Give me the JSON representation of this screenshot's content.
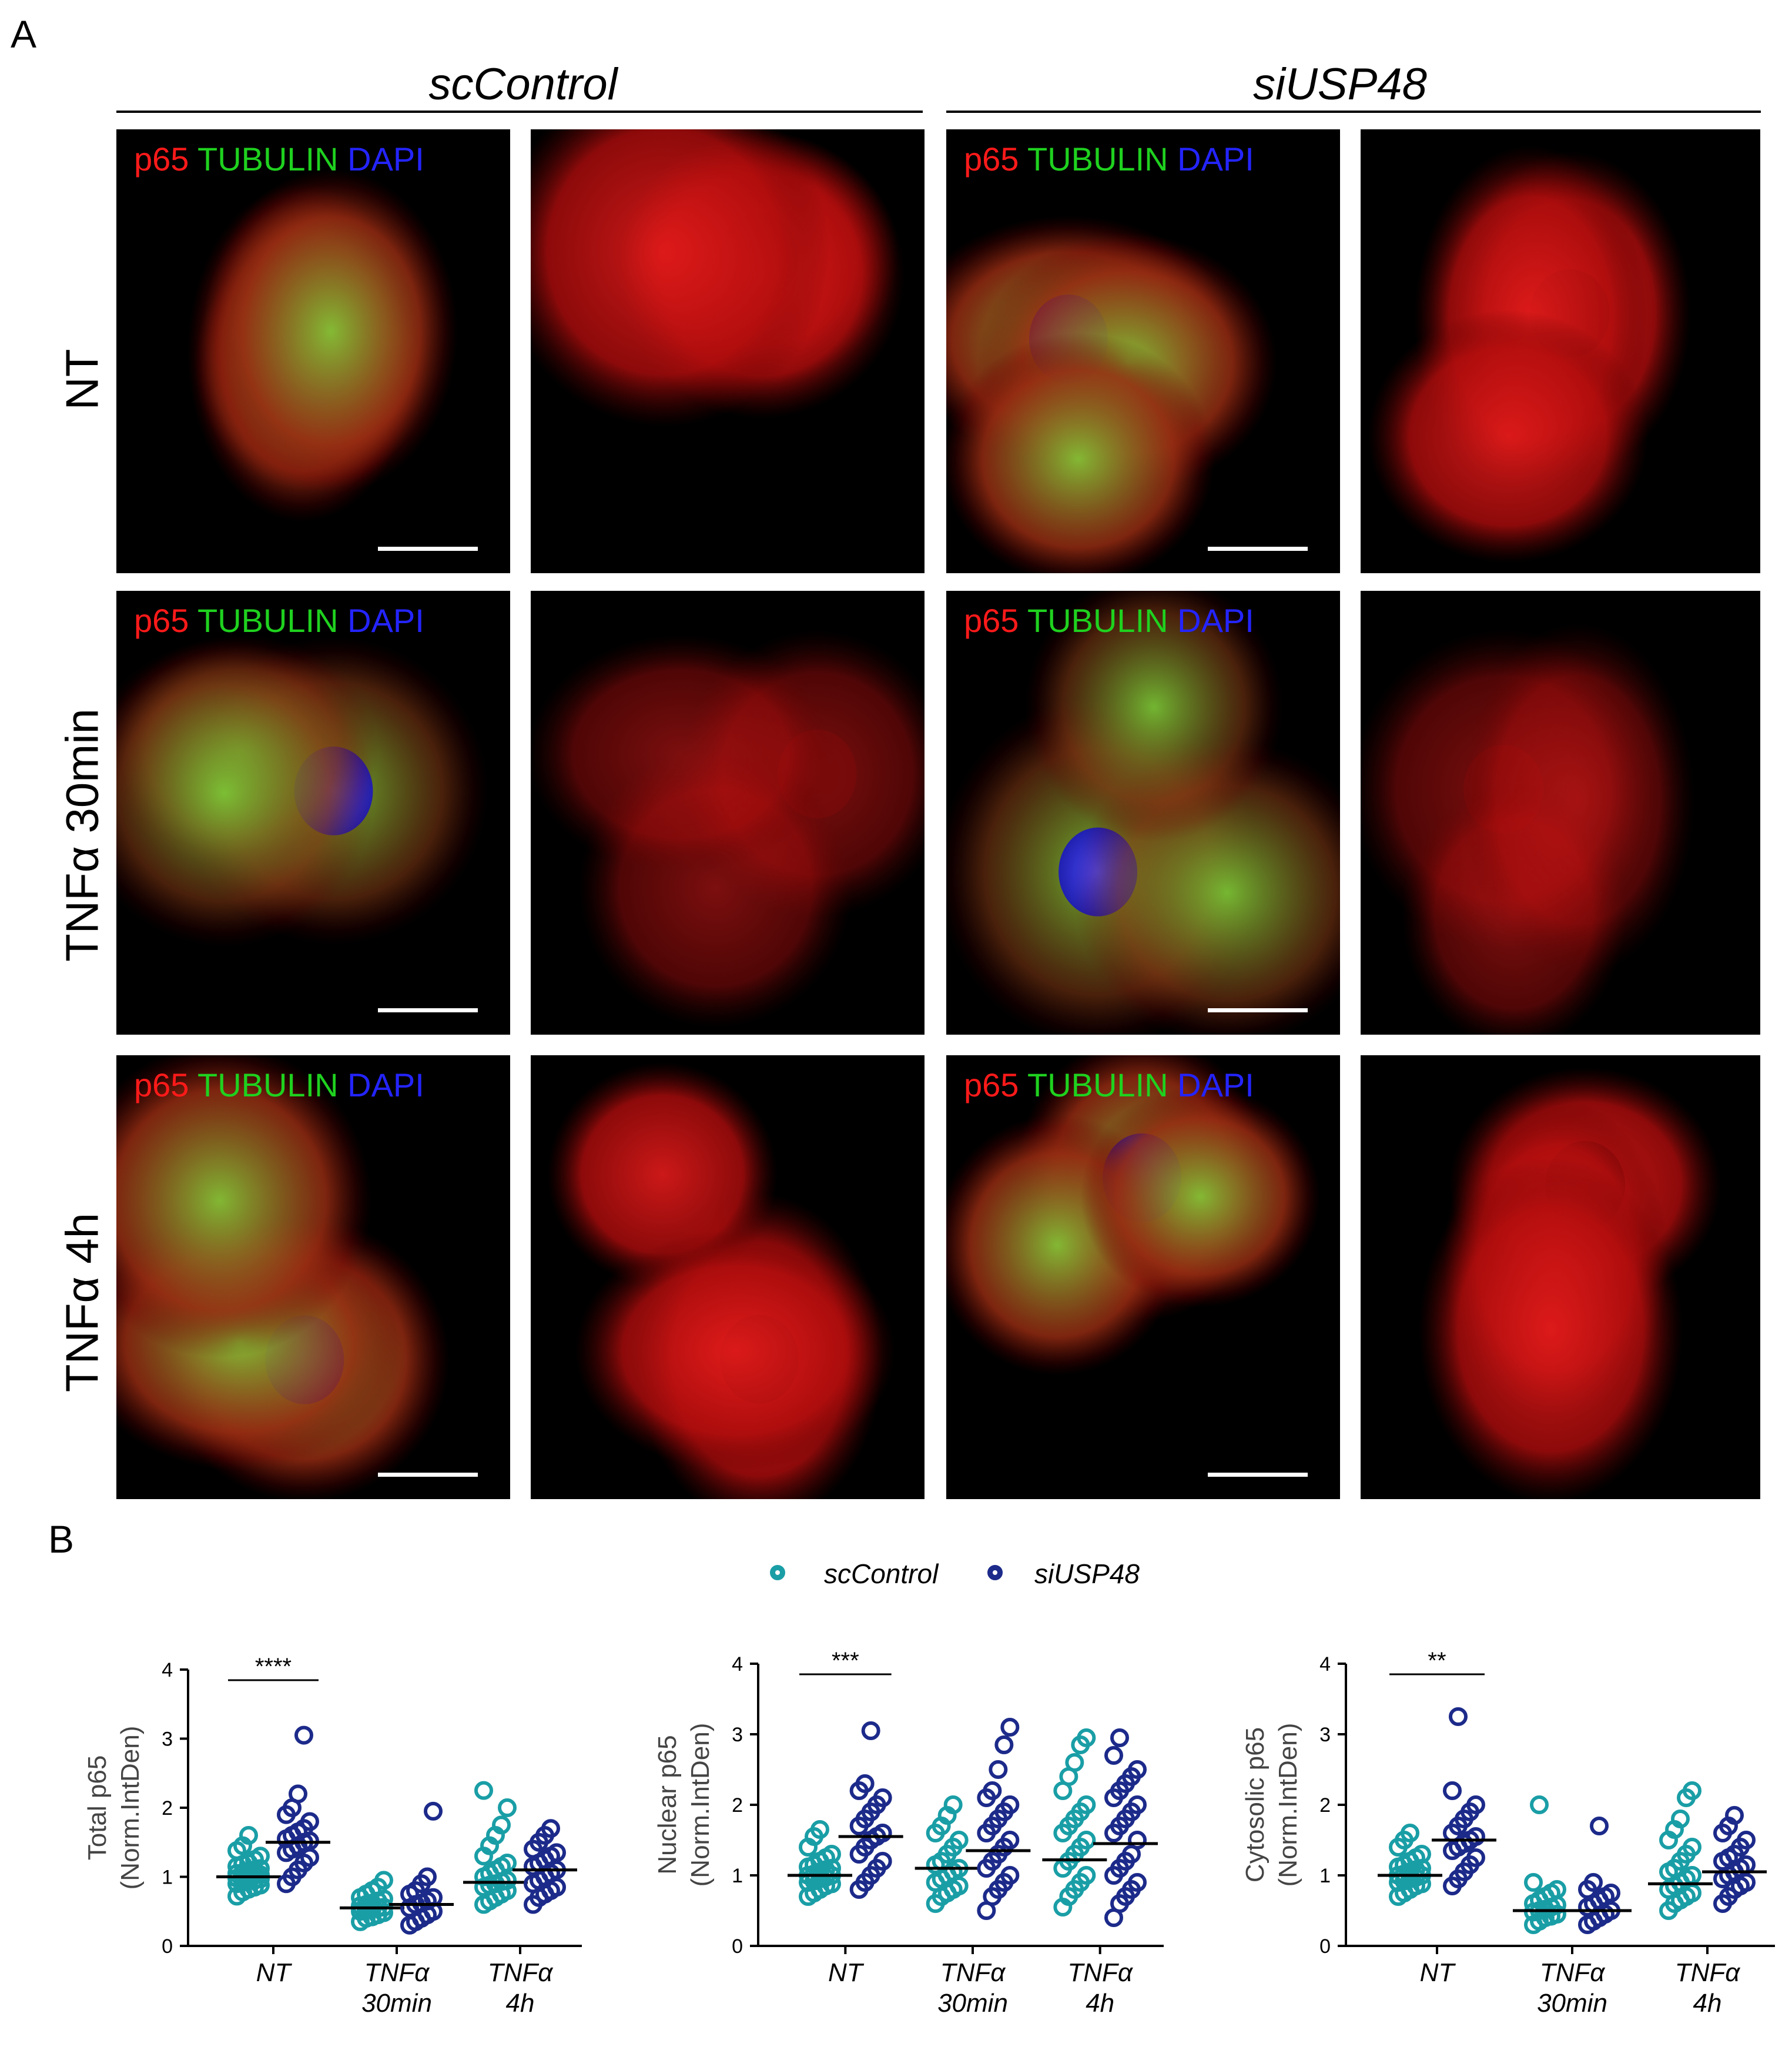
{
  "figure": {
    "panel_a_letter": "A",
    "panel_b_letter": "B",
    "groups": [
      "scControl",
      "siUSP48"
    ],
    "rows": [
      "NT",
      "TNFα 30min",
      "TNFα 4h"
    ],
    "channel_label": {
      "p65": "p65",
      "tubulin": "TUBULIN",
      "dapi": "DAPI"
    },
    "colors": {
      "p65": "#ff1a1a",
      "tubulin": "#1fd11f",
      "dapi": "#2424ff",
      "scControl": "#1a9ea6",
      "siUSP48": "#1c2a8a"
    }
  },
  "legend": {
    "scControl": "scControl",
    "siUSP48": "siUSP48"
  },
  "chart_data": [
    {
      "type": "scatter",
      "ylabel": "Total p65\n(Norm.IntDen)",
      "ylim": [
        0,
        4
      ],
      "yticks": [
        "0",
        "1",
        "2",
        "3",
        "4"
      ],
      "categories": [
        "NT",
        "TNFα\n30min",
        "TNFα\n4h"
      ],
      "significance": {
        "category": "NT",
        "label": "****"
      },
      "series": [
        {
          "name": "scControl",
          "values": [
            [
              0.72,
              0.78,
              0.82,
              0.85,
              0.88,
              0.9,
              0.92,
              0.94,
              0.95,
              0.97,
              0.98,
              1.0,
              1.0,
              1.02,
              1.03,
              1.05,
              1.06,
              1.08,
              1.1,
              1.12,
              1.15,
              1.18,
              1.2,
              1.25,
              1.3,
              1.38,
              1.45,
              1.6
            ],
            [
              0.35,
              0.4,
              0.42,
              0.45,
              0.48,
              0.5,
              0.52,
              0.53,
              0.55,
              0.56,
              0.58,
              0.6,
              0.62,
              0.65,
              0.68,
              0.7,
              0.75,
              0.8,
              0.85,
              0.95
            ],
            [
              0.6,
              0.65,
              0.7,
              0.75,
              0.8,
              0.85,
              0.88,
              0.9,
              0.93,
              0.95,
              1.0,
              1.05,
              1.1,
              1.15,
              1.2,
              1.3,
              1.45,
              1.6,
              1.75,
              2.0,
              2.25
            ]
          ],
          "medians": [
            1.0,
            0.55,
            0.92
          ]
        },
        {
          "name": "siUSP48",
          "values": [
            [
              0.9,
              1.0,
              1.1,
              1.2,
              1.28,
              1.35,
              1.4,
              1.45,
              1.5,
              1.52,
              1.55,
              1.6,
              1.65,
              1.7,
              1.8,
              1.9,
              2.0,
              2.2,
              3.05
            ],
            [
              0.3,
              0.35,
              0.4,
              0.45,
              0.5,
              0.55,
              0.6,
              0.62,
              0.65,
              0.7,
              0.75,
              0.8,
              0.9,
              1.0,
              1.95
            ],
            [
              0.6,
              0.7,
              0.75,
              0.8,
              0.85,
              0.9,
              0.95,
              1.0,
              1.05,
              1.1,
              1.15,
              1.2,
              1.25,
              1.3,
              1.35,
              1.4,
              1.5,
              1.6,
              1.7
            ]
          ],
          "medians": [
            1.5,
            0.6,
            1.1
          ]
        }
      ]
    },
    {
      "type": "scatter",
      "ylabel": "Nuclear p65\n(Norm.IntDen)",
      "ylim": [
        0,
        4
      ],
      "yticks": [
        "0",
        "1",
        "2",
        "3",
        "4"
      ],
      "categories": [
        "NT",
        "TNFα\n30min",
        "TNFα\n4h"
      ],
      "significance": {
        "category": "NT",
        "label": "***"
      },
      "series": [
        {
          "name": "scControl",
          "values": [
            [
              0.7,
              0.75,
              0.8,
              0.85,
              0.88,
              0.9,
              0.92,
              0.95,
              0.97,
              1.0,
              1.0,
              1.02,
              1.05,
              1.08,
              1.1,
              1.12,
              1.15,
              1.2,
              1.25,
              1.3,
              1.4,
              1.55,
              1.65
            ],
            [
              0.6,
              0.7,
              0.75,
              0.8,
              0.85,
              0.9,
              0.95,
              1.0,
              1.05,
              1.1,
              1.15,
              1.2,
              1.3,
              1.4,
              1.5,
              1.6,
              1.7,
              1.85,
              2.0
            ],
            [
              0.55,
              0.7,
              0.8,
              0.9,
              1.0,
              1.1,
              1.2,
              1.3,
              1.4,
              1.5,
              1.6,
              1.7,
              1.8,
              1.9,
              2.0,
              2.2,
              2.4,
              2.6,
              2.85,
              2.95
            ]
          ],
          "medians": [
            1.0,
            1.1,
            1.22
          ]
        },
        {
          "name": "siUSP48",
          "values": [
            [
              0.8,
              0.9,
              1.0,
              1.1,
              1.2,
              1.3,
              1.4,
              1.5,
              1.55,
              1.6,
              1.7,
              1.8,
              1.9,
              2.0,
              2.1,
              2.2,
              2.3,
              3.05
            ],
            [
              0.5,
              0.7,
              0.8,
              0.9,
              1.0,
              1.1,
              1.2,
              1.3,
              1.4,
              1.5,
              1.6,
              1.7,
              1.8,
              1.9,
              2.0,
              2.1,
              2.2,
              2.5,
              2.85,
              3.1
            ],
            [
              0.4,
              0.6,
              0.7,
              0.8,
              0.9,
              1.0,
              1.1,
              1.2,
              1.3,
              1.5,
              1.6,
              1.7,
              1.8,
              1.9,
              2.0,
              2.1,
              2.2,
              2.3,
              2.4,
              2.5,
              2.7,
              2.95
            ]
          ],
          "medians": [
            1.55,
            1.35,
            1.45
          ]
        }
      ]
    },
    {
      "type": "scatter",
      "ylabel": "Cytosolic p65\n(Norm.IntDen)",
      "ylim": [
        0,
        4
      ],
      "yticks": [
        "0",
        "1",
        "2",
        "3",
        "4"
      ],
      "categories": [
        "NT",
        "TNFα\n30min",
        "TNFα\n4h"
      ],
      "significance": {
        "category": "NT",
        "label": "**"
      },
      "series": [
        {
          "name": "scControl",
          "values": [
            [
              0.7,
              0.75,
              0.8,
              0.85,
              0.88,
              0.9,
              0.92,
              0.95,
              0.97,
              1.0,
              1.0,
              1.02,
              1.05,
              1.08,
              1.1,
              1.12,
              1.15,
              1.2,
              1.25,
              1.3,
              1.4,
              1.5,
              1.6
            ],
            [
              0.3,
              0.35,
              0.4,
              0.42,
              0.45,
              0.48,
              0.5,
              0.52,
              0.55,
              0.58,
              0.6,
              0.65,
              0.7,
              0.75,
              0.8,
              0.9,
              2.0
            ],
            [
              0.5,
              0.6,
              0.65,
              0.7,
              0.75,
              0.8,
              0.85,
              0.9,
              0.95,
              1.0,
              1.05,
              1.1,
              1.2,
              1.3,
              1.4,
              1.5,
              1.65,
              1.8,
              2.1,
              2.2
            ]
          ],
          "medians": [
            1.0,
            0.5,
            0.88
          ]
        },
        {
          "name": "siUSP48",
          "values": [
            [
              0.85,
              0.95,
              1.05,
              1.15,
              1.25,
              1.35,
              1.4,
              1.45,
              1.5,
              1.55,
              1.6,
              1.7,
              1.8,
              1.9,
              2.0,
              2.2,
              3.25
            ],
            [
              0.3,
              0.35,
              0.4,
              0.45,
              0.5,
              0.55,
              0.6,
              0.65,
              0.7,
              0.75,
              0.8,
              0.9,
              1.7
            ],
            [
              0.6,
              0.7,
              0.8,
              0.85,
              0.9,
              0.95,
              1.0,
              1.05,
              1.1,
              1.15,
              1.2,
              1.25,
              1.3,
              1.4,
              1.5,
              1.6,
              1.7,
              1.85
            ]
          ],
          "medians": [
            1.5,
            0.5,
            1.05
          ]
        }
      ]
    }
  ]
}
